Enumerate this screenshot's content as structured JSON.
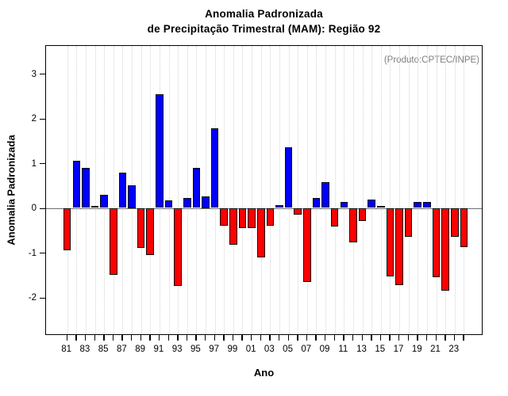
{
  "chart_data": {
    "type": "bar",
    "title_line1": "Anomalia Padronizada",
    "title_line2": "de Precipitação Trimestral (MAM): Região 92",
    "annotation": "(Produto:CPTEC/INPE)",
    "xlabel": "Ano",
    "ylabel": "Anomalia Padronizada",
    "years": [
      1981,
      1982,
      1983,
      1984,
      1985,
      1986,
      1987,
      1988,
      1989,
      1990,
      1991,
      1992,
      1993,
      1994,
      1995,
      1996,
      1997,
      1998,
      1999,
      2000,
      2001,
      2002,
      2003,
      2004,
      2005,
      2006,
      2007,
      2008,
      2009,
      2010,
      2011,
      2012,
      2013,
      2014,
      2015,
      2016,
      2017,
      2018,
      2019,
      2020,
      2021,
      2022,
      2023,
      2024
    ],
    "values": [
      -0.95,
      1.05,
      0.9,
      0.05,
      0.3,
      -1.5,
      0.78,
      0.5,
      -0.9,
      -1.05,
      2.54,
      0.17,
      -1.75,
      0.22,
      0.9,
      0.25,
      1.77,
      -0.4,
      -0.83,
      -0.46,
      -0.45,
      -1.1,
      -0.4,
      0.07,
      1.35,
      -0.15,
      -1.65,
      0.22,
      0.58,
      -0.41,
      0.13,
      -0.77,
      -0.3,
      0.19,
      0.05,
      -1.53,
      -1.73,
      -0.65,
      0.14,
      0.14,
      -1.54,
      -1.85,
      -0.65,
      -0.88
    ],
    "xtick_labels": [
      "81",
      "83",
      "85",
      "87",
      "89",
      "91",
      "93",
      "95",
      "97",
      "99",
      "01",
      "03",
      "05",
      "07",
      "09",
      "11",
      "13",
      "15",
      "17",
      "19",
      "21",
      "23"
    ],
    "yticks": [
      3,
      2,
      1,
      0,
      -1,
      -2
    ],
    "ylim": [
      -2.79,
      3.56
    ],
    "grid": "vertical dotted line at every year",
    "legend": false,
    "colors": {
      "positive_bar": "#0000FF",
      "negative_bar": "#FF0000",
      "bar_border": "#0a0a0a",
      "grid": "#d4d4d4",
      "zero_line": "#6e6e6e",
      "annotation_text": "#7f7f7f"
    }
  }
}
